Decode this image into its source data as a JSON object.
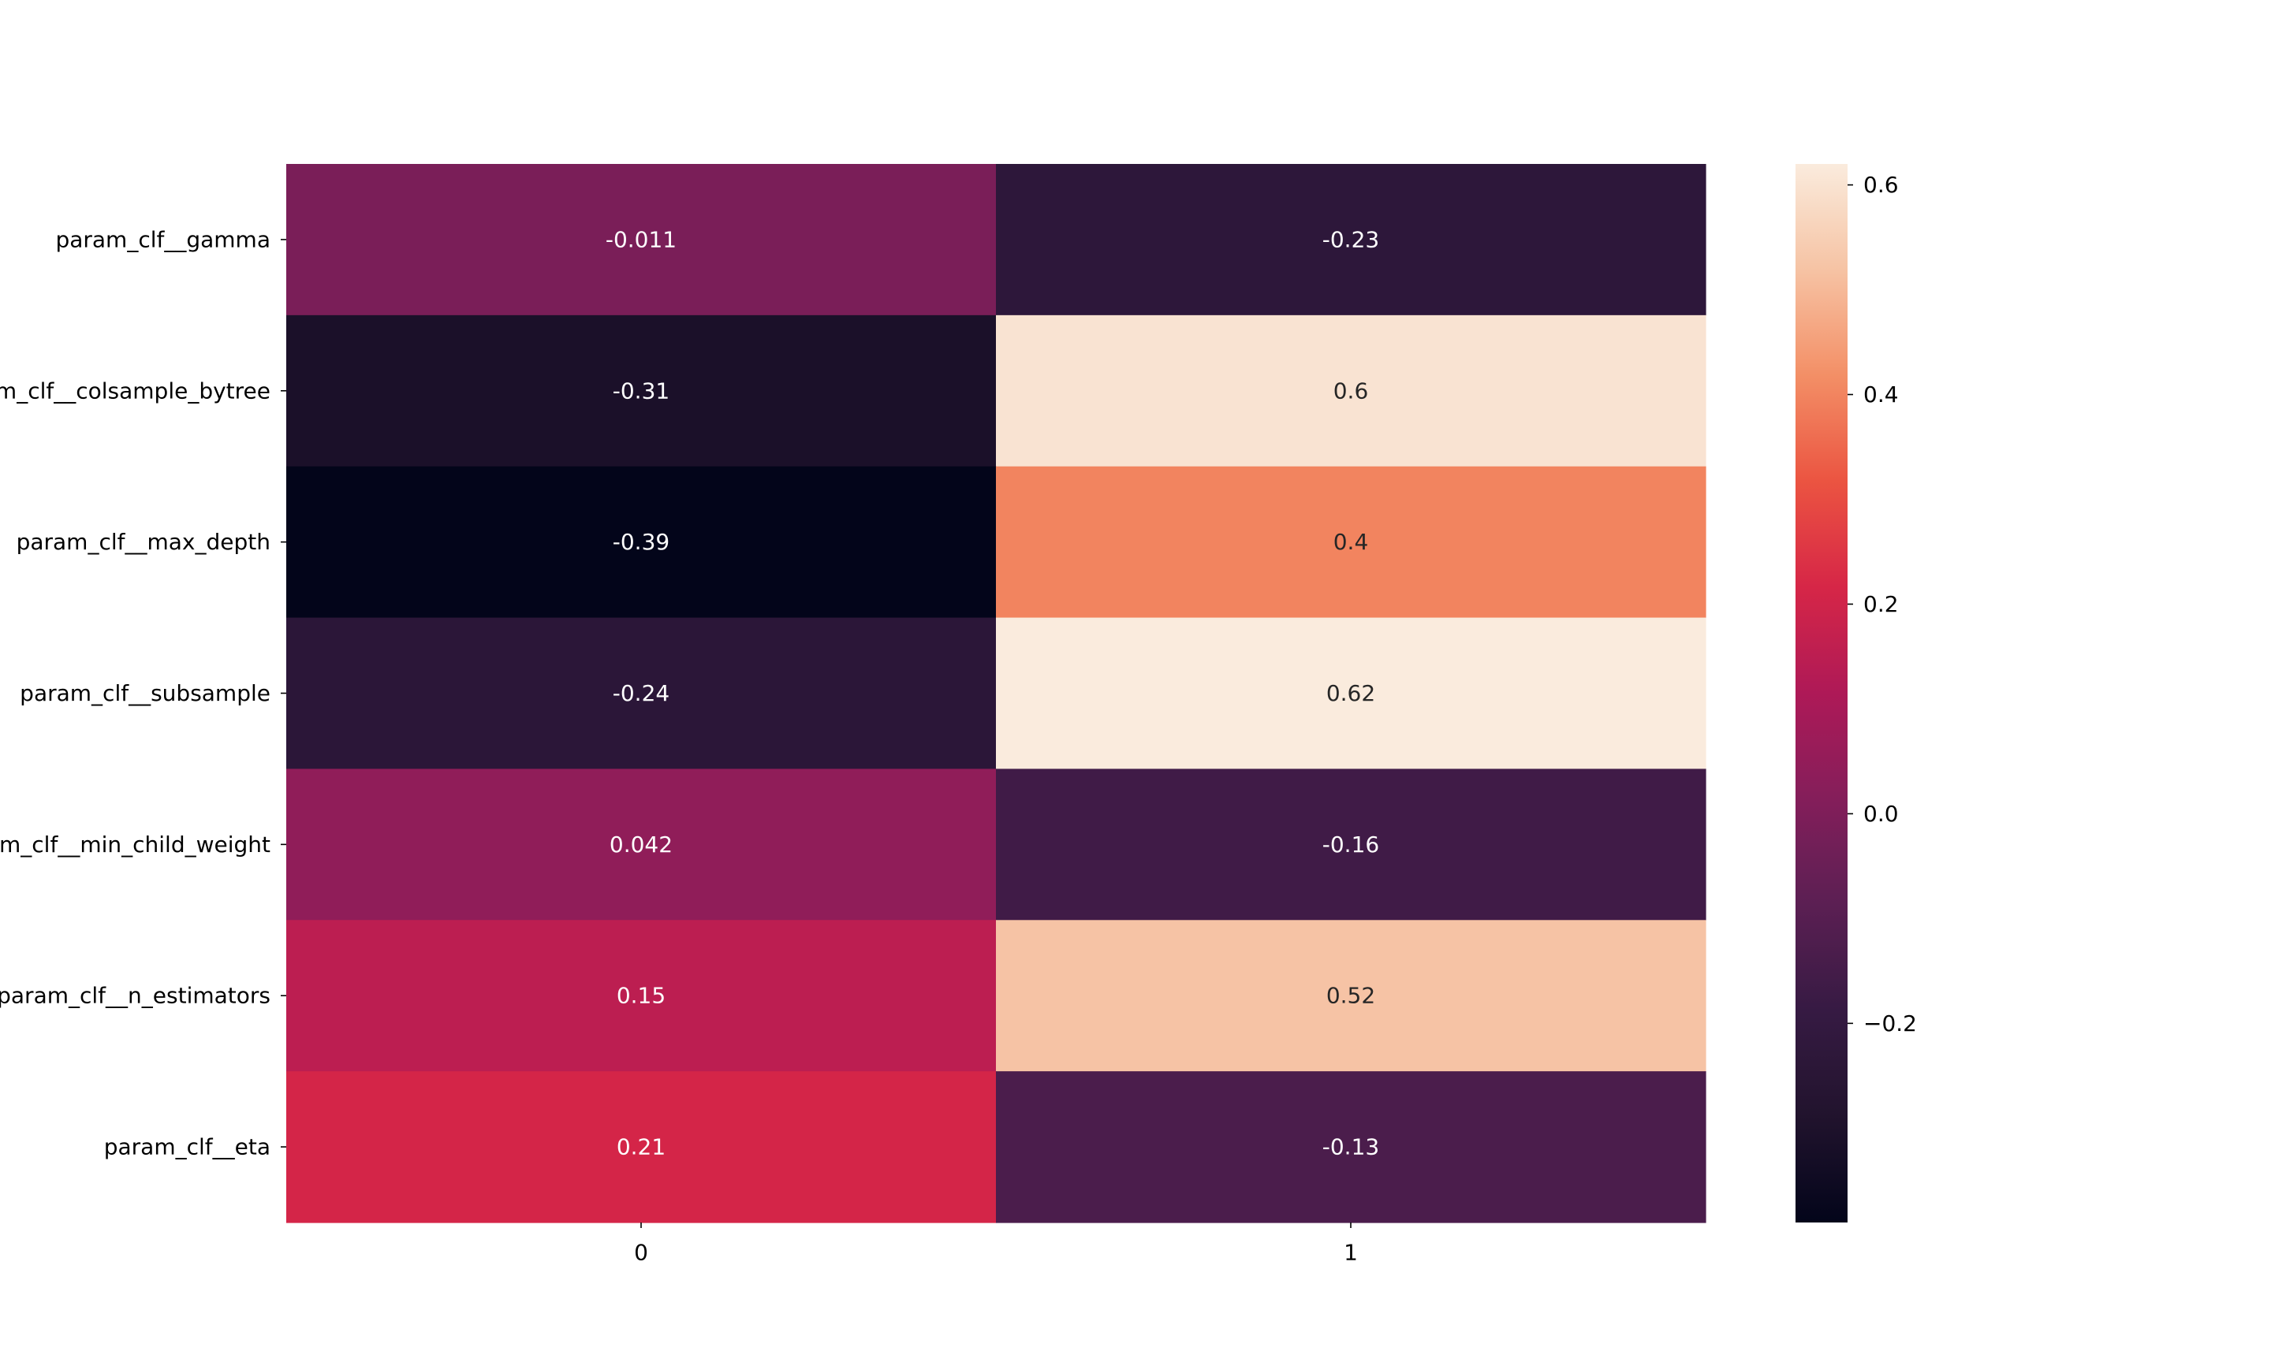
{
  "chart_data": {
    "type": "heatmap",
    "rows": [
      "param_clf__gamma",
      "param_clf__colsample_bytree",
      "param_clf__max_depth",
      "param_clf__subsample",
      "param_clf__min_child_weight",
      "param_clf__n_estimators",
      "param_clf__eta"
    ],
    "columns": [
      "0",
      "1"
    ],
    "values": [
      [
        -0.011,
        -0.23
      ],
      [
        -0.31,
        0.6
      ],
      [
        -0.39,
        0.4
      ],
      [
        -0.24,
        0.62
      ],
      [
        0.042,
        -0.16
      ],
      [
        0.15,
        0.52
      ],
      [
        0.21,
        -0.13
      ]
    ],
    "cell_labels": [
      [
        "-0.011",
        "-0.23"
      ],
      [
        "-0.31",
        "0.6"
      ],
      [
        "-0.39",
        "0.4"
      ],
      [
        "-0.24",
        "0.62"
      ],
      [
        "0.042",
        "-0.16"
      ],
      [
        "0.15",
        "0.52"
      ],
      [
        "0.21",
        "-0.13"
      ]
    ],
    "colormap": "rocket",
    "vmin": -0.39,
    "vmax": 0.62,
    "colorbar": {
      "ticks": [
        0.6,
        0.4,
        0.2,
        0.0,
        -0.2
      ],
      "tick_labels": [
        "0.6",
        "0.4",
        "0.2",
        "0.0",
        "−0.2"
      ]
    },
    "title": "",
    "xlabel": "",
    "ylabel": ""
  }
}
